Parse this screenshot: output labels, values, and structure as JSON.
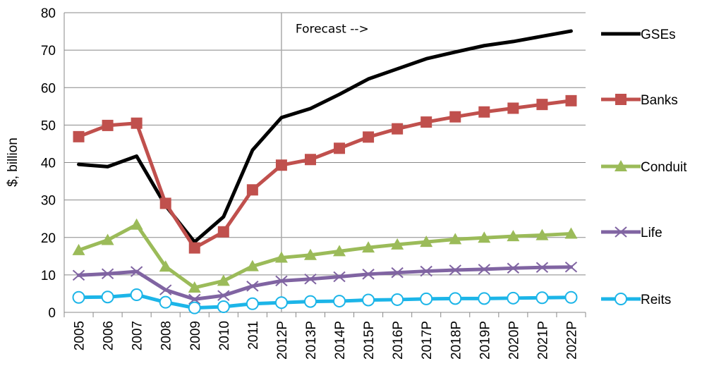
{
  "chart_data": {
    "type": "line",
    "ylabel": "$, billion",
    "ylim": [
      0,
      80
    ],
    "yticks": [
      0,
      10,
      20,
      30,
      40,
      50,
      60,
      70,
      80
    ],
    "grid": true,
    "legend_position": "right",
    "annotation": "Forecast -->",
    "forecast_start": "2012P",
    "categories": [
      "2005",
      "2006",
      "2007",
      "2008",
      "2009",
      "2010",
      "2011",
      "2012P",
      "2013P",
      "2014P",
      "2015P",
      "2016P",
      "2017P",
      "2018P",
      "2019P",
      "2020P",
      "2021P",
      "2022P"
    ],
    "series": [
      {
        "name": "GSEs",
        "color": "#000000",
        "marker": "none",
        "values": [
          39.5,
          38.9,
          41.7,
          28.5,
          18.8,
          25.5,
          43.3,
          52.0,
          54.4,
          58.2,
          62.3,
          65.0,
          67.7,
          69.5,
          71.2,
          72.3,
          73.7,
          75.1
        ]
      },
      {
        "name": "Banks",
        "color": "#C0504D",
        "marker": "square",
        "values": [
          46.9,
          49.9,
          50.5,
          29.1,
          17.2,
          21.5,
          32.7,
          39.3,
          40.8,
          43.8,
          46.8,
          49.0,
          50.8,
          52.2,
          53.5,
          54.5,
          55.5,
          56.5
        ]
      },
      {
        "name": "Conduit",
        "color": "#9BBB59",
        "marker": "triangle",
        "values": [
          16.6,
          19.3,
          23.4,
          12.2,
          6.6,
          8.4,
          12.3,
          14.6,
          15.3,
          16.3,
          17.3,
          18.1,
          18.8,
          19.5,
          19.9,
          20.3,
          20.6,
          21.0
        ]
      },
      {
        "name": "Life",
        "color": "#8064A2",
        "marker": "x",
        "values": [
          9.9,
          10.3,
          10.9,
          6.0,
          3.5,
          4.5,
          7.0,
          8.4,
          8.9,
          9.5,
          10.2,
          10.6,
          11.0,
          11.3,
          11.5,
          11.8,
          12.0,
          12.1
        ]
      },
      {
        "name": "Reits",
        "color": "#1CB5E8",
        "marker": "circle",
        "values": [
          4.0,
          4.1,
          4.7,
          2.7,
          1.2,
          1.5,
          2.3,
          2.6,
          2.9,
          3.0,
          3.3,
          3.4,
          3.6,
          3.7,
          3.7,
          3.8,
          3.9,
          4.0
        ]
      }
    ]
  }
}
